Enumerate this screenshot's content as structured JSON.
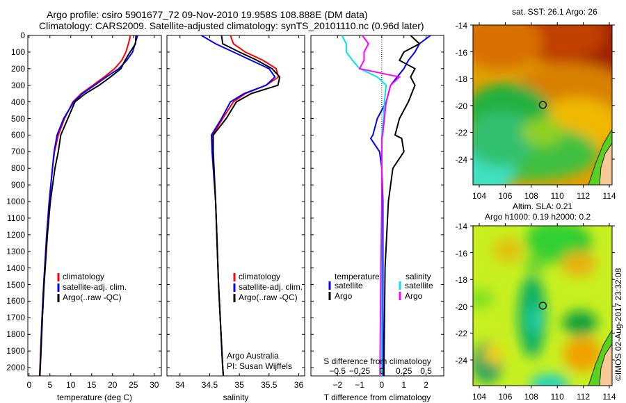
{
  "title_line1": "Argo profile: csiro 5901677_72 09-Nov-2010 19.958S 108.888E (DM data)",
  "title_line2": "Climatology: CARS2009. Satellite-adjusted climatology: synTS_20101110.nc (0.96d later)",
  "colors": {
    "climatology": "#ff0000",
    "satellite": "#0000ff",
    "argo": "#000000",
    "sal_satellite": "#00e5ee",
    "sal_argo": "#ff00ff"
  },
  "chart_data": [
    {
      "type": "line",
      "name": "temperature",
      "xlabel": "temperature (deg C)",
      "ylabel": "depth",
      "xlim": [
        -0.3,
        31.7
      ],
      "ylim": [
        0,
        2050
      ],
      "xticks": [
        0,
        5,
        10,
        15,
        20,
        25,
        30
      ],
      "yticks": [
        0,
        100,
        200,
        300,
        400,
        500,
        600,
        700,
        800,
        900,
        1000,
        1100,
        1200,
        1300,
        1400,
        1500,
        1600,
        1700,
        1800,
        1900,
        2000
      ],
      "legend": [
        "climatology",
        "satellite-adj. clim.",
        "Argo(..raw -QC)"
      ],
      "depth": [
        0,
        50,
        100,
        150,
        200,
        250,
        300,
        350,
        400,
        500,
        600,
        700,
        800,
        1000,
        1200,
        1500,
        1700,
        2000,
        2050
      ],
      "series": [
        {
          "name": "climatology",
          "values": [
            24.3,
            23.8,
            23.2,
            22.2,
            20.5,
            18,
            15.3,
            12.5,
            10.5,
            8.5,
            7,
            6.1,
            5.6,
            4.8,
            4.2,
            3.5,
            3.1,
            2.6,
            2.5
          ]
        },
        {
          "name": "satellite-adj. clim.",
          "values": [
            26,
            25.4,
            24.8,
            23.4,
            21.5,
            18.5,
            15.7,
            12.8,
            10.7,
            8.3,
            6.7,
            6,
            5.6,
            4.85,
            4.25,
            3.5,
            3.1,
            2.65,
            2.55
          ]
        },
        {
          "name": "Argo",
          "values": [
            25.6,
            25.5,
            24.2,
            23,
            22,
            19.5,
            16.8,
            13.5,
            11,
            9.3,
            7.6,
            7,
            6.2,
            5.1,
            4.4,
            3.6,
            3.2,
            2.7,
            2.6
          ]
        }
      ]
    },
    {
      "type": "line",
      "name": "salinity",
      "xlabel": "salinity",
      "xlim": [
        33.78,
        36.1
      ],
      "ylim": [
        0,
        2050
      ],
      "xticks": [
        34,
        34.5,
        35,
        35.5,
        36
      ],
      "legend": [
        "climatology",
        "satellite-adj. clim.",
        "Argo(..raw -QC)"
      ],
      "annotation": [
        "Argo Australia",
        "PI: Susan Wijffels"
      ],
      "depth": [
        0,
        50,
        100,
        150,
        200,
        250,
        300,
        350,
        400,
        500,
        600,
        700,
        1000,
        1500,
        2000,
        2050
      ],
      "series": [
        {
          "name": "climatology",
          "values": [
            34.85,
            34.9,
            35.1,
            35.4,
            35.62,
            35.66,
            35.45,
            35.1,
            34.9,
            34.72,
            34.55,
            34.55,
            34.6,
            34.65,
            34.72,
            34.73
          ]
        },
        {
          "name": "satellite-adj. clim.",
          "values": [
            34.36,
            34.6,
            34.9,
            35.2,
            35.5,
            35.6,
            35.45,
            35.08,
            34.85,
            34.7,
            34.53,
            34.54,
            34.6,
            34.65,
            34.72,
            34.73
          ]
        },
        {
          "name": "Argo",
          "values": [
            34.7,
            34.72,
            35,
            35.3,
            35.55,
            35.68,
            35.65,
            35.2,
            34.95,
            34.78,
            34.56,
            34.56,
            34.6,
            34.65,
            34.72,
            34.73
          ]
        }
      ]
    },
    {
      "type": "line",
      "name": "difference",
      "xlabel": "T difference from climatology",
      "x2label": "S difference from climatology",
      "xlim": [
        -3.2,
        2.8
      ],
      "x2lim": [
        -0.8,
        0.7
      ],
      "ylim": [
        0,
        2050
      ],
      "xticks": [
        -2,
        -1,
        0,
        1,
        2
      ],
      "x2ticks": [
        -0.5,
        -0.25,
        0,
        0.25,
        0.5
      ],
      "legend_temperature": [
        "temperature",
        "satellite",
        "Argo"
      ],
      "legend_salinity": [
        "salinity",
        "satellite",
        "Argo"
      ],
      "depth": [
        0,
        50,
        100,
        150,
        200,
        250,
        300,
        400,
        500,
        600,
        620,
        700,
        800,
        1000,
        1400,
        2000,
        2050
      ],
      "series": [
        {
          "name": "T satellite",
          "values": [
            2.2,
            1.7,
            1.5,
            1.2,
            1,
            0.7,
            0.4,
            0.2,
            -0.2,
            -0.4,
            -0.5,
            -0.1,
            0,
            0.05,
            0.05,
            0.05,
            0.05
          ]
        },
        {
          "name": "T Argo",
          "values": [
            1.3,
            1.7,
            1,
            0.8,
            1.5,
            1.3,
            1.5,
            1.2,
            0.8,
            0.6,
            0.9,
            1,
            0.5,
            0.3,
            0.15,
            0.1,
            0.1
          ]
        },
        {
          "name": "S satellite",
          "values": [
            -0.45,
            -0.4,
            -0.4,
            -0.33,
            -0.25,
            -0.05,
            0.05,
            0.03,
            0.02,
            0,
            0,
            0,
            0,
            0,
            0,
            0,
            0
          ]
        },
        {
          "name": "S Argo",
          "values": [
            -0.22,
            -0.15,
            -0.2,
            -0.2,
            -0.25,
            0.2,
            0.1,
            0.05,
            0.03,
            0.01,
            0,
            0,
            0,
            0,
            -0.01,
            -0.02,
            -0.02
          ]
        }
      ]
    }
  ],
  "maps": {
    "sst_title": "sat. SST: 26.1 Argo: 26",
    "sla_title1": "Altim. SLA: 0.21",
    "sla_title2": "Argo h1000: 0.19 h2000: 0.2",
    "lon_ticks": [
      "104",
      "106",
      "108",
      "110",
      "112",
      "114"
    ],
    "lat_ticks": [
      "-14",
      "-16",
      "-18",
      "-20",
      "-22",
      "-24"
    ],
    "argo_lon": 108.888,
    "argo_lat": -19.958
  },
  "credit": "©IMOS 02-Aug-2017 23:32:08"
}
